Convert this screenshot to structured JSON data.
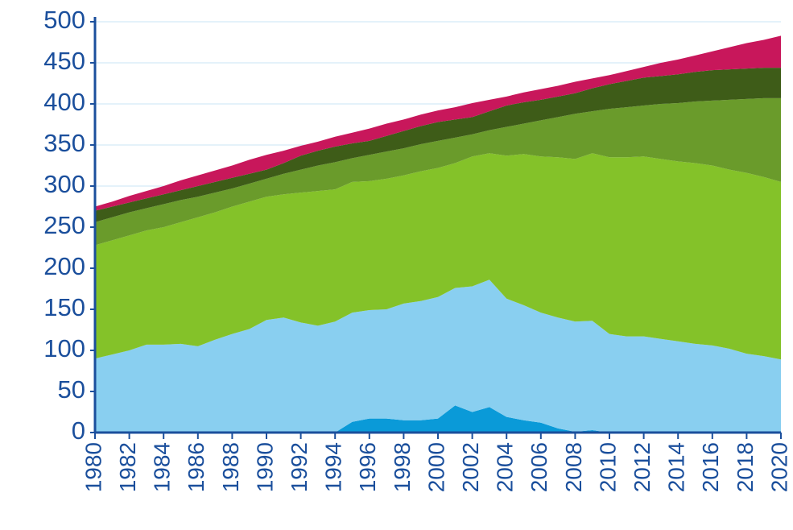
{
  "chart_data": {
    "type": "stacked-area",
    "x": [
      1980,
      1981,
      1982,
      1983,
      1984,
      1985,
      1986,
      1987,
      1988,
      1989,
      1990,
      1991,
      1992,
      1993,
      1994,
      1995,
      1996,
      1997,
      1998,
      1999,
      2000,
      2001,
      2002,
      2003,
      2004,
      2005,
      2006,
      2007,
      2008,
      2009,
      2010,
      2011,
      2012,
      2013,
      2014,
      2015,
      2016,
      2017,
      2018,
      2019,
      2020
    ],
    "xlim": [
      1980,
      2020
    ],
    "xticks": [
      1980,
      1982,
      1984,
      1986,
      1988,
      1990,
      1992,
      1994,
      1996,
      1998,
      2000,
      2002,
      2004,
      2006,
      2008,
      2010,
      2012,
      2014,
      2016,
      2018,
      2020
    ],
    "ylim": [
      0,
      500
    ],
    "yticks": [
      0,
      50,
      100,
      150,
      200,
      250,
      300,
      350,
      400,
      450,
      500
    ],
    "grid": true,
    "series": [
      {
        "color": "#0a9ad8",
        "values": [
          0,
          0,
          0,
          0,
          0,
          0,
          0,
          0,
          0,
          0,
          0,
          0,
          0,
          0,
          0,
          13,
          17,
          17,
          15,
          15,
          17,
          33,
          25,
          31,
          19,
          15,
          12,
          5,
          1,
          3,
          0,
          0,
          0,
          0,
          0,
          0,
          0,
          0,
          0,
          0,
          0
        ]
      },
      {
        "color": "#89cff0",
        "values": [
          90,
          95,
          100,
          107,
          107,
          108,
          105,
          113,
          120,
          126,
          137,
          140,
          134,
          130,
          135,
          133,
          132,
          133,
          142,
          145,
          148,
          143,
          153,
          155,
          144,
          140,
          134,
          135,
          134,
          133,
          120,
          117,
          117,
          114,
          111,
          108,
          106,
          102,
          96,
          93,
          89
        ]
      },
      {
        "color": "#84c229",
        "values": [
          138,
          139,
          140,
          139,
          143,
          148,
          157,
          155,
          155,
          155,
          150,
          150,
          158,
          164,
          161,
          159,
          157,
          159,
          156,
          158,
          157,
          152,
          158,
          154,
          174,
          184,
          190,
          195,
          198,
          204,
          215,
          218,
          219,
          219,
          219,
          220,
          219,
          218,
          220,
          218,
          216
        ]
      },
      {
        "color": "#6a9b2b",
        "values": [
          28,
          28,
          28,
          27,
          28,
          27,
          25,
          24,
          22,
          22,
          22,
          25,
          28,
          31,
          33,
          29,
          32,
          33,
          33,
          33,
          33,
          31,
          27,
          28,
          35,
          37,
          44,
          49,
          55,
          51,
          59,
          61,
          62,
          67,
          71,
          75,
          79,
          85,
          90,
          96,
          102
        ]
      },
      {
        "color": "#3e5c18",
        "values": [
          14,
          13,
          12,
          12,
          12,
          12,
          13,
          13,
          13,
          12,
          11,
          13,
          17,
          18,
          19,
          18,
          17,
          19,
          21,
          22,
          23,
          22,
          21,
          23,
          26,
          26,
          25,
          25,
          25,
          28,
          30,
          32,
          34,
          34,
          35,
          36,
          37,
          37,
          37,
          37,
          37
        ]
      },
      {
        "color": "#c8175b",
        "values": [
          5,
          6,
          8,
          9,
          10,
          12,
          13,
          14,
          15,
          17,
          18,
          15,
          12,
          11,
          12,
          13,
          15,
          15,
          14,
          14,
          14,
          15,
          17,
          14,
          11,
          12,
          13,
          13,
          14,
          12,
          11,
          12,
          13,
          16,
          18,
          20,
          23,
          27,
          31,
          34,
          39
        ]
      }
    ]
  }
}
